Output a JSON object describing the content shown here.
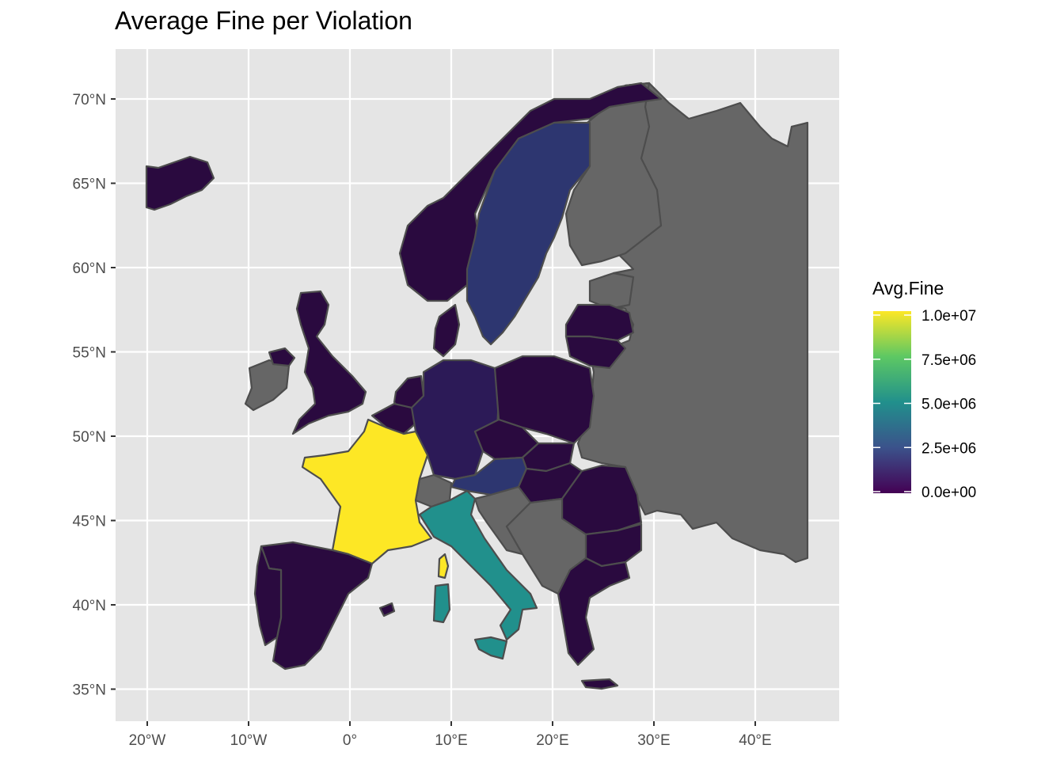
{
  "title": "Average Fine per Violation",
  "colors": {
    "panel": "#e5e5e5",
    "grid": "#ffffff",
    "no_data": "#666666",
    "border": "#4d4d4d",
    "scale": [
      "#440154",
      "#3b528b",
      "#21908c",
      "#5dc863",
      "#fde725"
    ]
  },
  "axes": {
    "x_ticks": [
      "20°W",
      "10°W",
      "0°",
      "10°E",
      "20°E",
      "30°E",
      "40°E"
    ],
    "y_ticks": [
      "70°N",
      "65°N",
      "60°N",
      "55°N",
      "50°N",
      "45°N",
      "40°N",
      "35°N"
    ],
    "lon_range": [
      -22,
      49
    ],
    "lat_range": [
      33,
      73
    ]
  },
  "legend": {
    "title": "Avg.Fine",
    "labels": [
      "1.0e+07",
      "7.5e+06",
      "5.0e+06",
      "2.5e+06",
      "0.0e+00"
    ],
    "min": 0,
    "max": 10000000,
    "position": "right"
  },
  "regions": [
    {
      "name": "Iceland",
      "color": "#2a0a3f"
    },
    {
      "name": "Norway",
      "color": "#2a0a3f"
    },
    {
      "name": "Sweden",
      "color": "#2d3670"
    },
    {
      "name": "Finland",
      "color": "#666666"
    },
    {
      "name": "Russia and eastern Europe",
      "color": "#666666"
    },
    {
      "name": "Ireland",
      "color": "#666666"
    },
    {
      "name": "Northern Ireland",
      "color": "#2a0a3f"
    },
    {
      "name": "United Kingdom",
      "color": "#2a0a3f"
    },
    {
      "name": "Denmark",
      "color": "#2a0a3f"
    },
    {
      "name": "Estonia",
      "color": "#666666"
    },
    {
      "name": "Latvia",
      "color": "#2a0a3f"
    },
    {
      "name": "Lithuania",
      "color": "#2a0a3f"
    },
    {
      "name": "Netherlands",
      "color": "#2a0a3f"
    },
    {
      "name": "Belgium",
      "color": "#2a0a3f"
    },
    {
      "name": "Luxembourg",
      "color": "#2a0a3f"
    },
    {
      "name": "Germany",
      "color": "#2c1a57"
    },
    {
      "name": "Poland",
      "color": "#2a0a3f"
    },
    {
      "name": "Czechia",
      "color": "#2a0a3f"
    },
    {
      "name": "Slovakia",
      "color": "#2a0a3f"
    },
    {
      "name": "Austria",
      "color": "#2d3670"
    },
    {
      "name": "Hungary",
      "color": "#2a0a3f"
    },
    {
      "name": "Romania",
      "color": "#2a0a3f"
    },
    {
      "name": "Bulgaria",
      "color": "#2a0a3f"
    },
    {
      "name": "France",
      "color": "#fde725"
    },
    {
      "name": "Corsica",
      "color": "#fde725"
    },
    {
      "name": "Switzerland",
      "color": "#666666"
    },
    {
      "name": "Italy",
      "color": "#21908c"
    },
    {
      "name": "Sardinia",
      "color": "#21908c"
    },
    {
      "name": "Sicily",
      "color": "#21908c"
    },
    {
      "name": "Slovenia and Croatia",
      "color": "#666666"
    },
    {
      "name": "Western Balkans",
      "color": "#666666"
    },
    {
      "name": "Greece",
      "color": "#2a0a3f"
    },
    {
      "name": "Crete",
      "color": "#2a0a3f"
    },
    {
      "name": "Spain",
      "color": "#2a0a3f"
    },
    {
      "name": "Portugal",
      "color": "#2a0a3f"
    },
    {
      "name": "Balearic Islands",
      "color": "#2a0a3f"
    }
  ]
}
